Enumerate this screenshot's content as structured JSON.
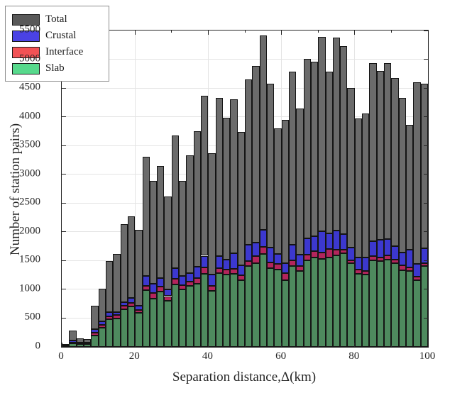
{
  "figure": {
    "x_axis_label": "Separation distance,Δ(km)",
    "y_axis_label": "Number of station pairs)"
  },
  "legend": {
    "position": "top-left",
    "items": [
      {
        "label": "Total",
        "color": "#595959"
      },
      {
        "label": "Crustal",
        "color": "#4a42e4"
      },
      {
        "label": "Interface",
        "color": "#f25255"
      },
      {
        "label": "Slab",
        "color": "#57d98c"
      }
    ]
  },
  "chart_data": {
    "type": "bar",
    "stacked": true,
    "title": "",
    "xlabel": "Separation distance,Δ(km)",
    "ylabel": "Number of station pairs)",
    "xlim": [
      0,
      100
    ],
    "ylim": [
      0,
      5500
    ],
    "grid": true,
    "legend_position": "top-left",
    "bin_width_km": 2,
    "y_ticks": [
      0,
      500,
      1000,
      1500,
      2000,
      2500,
      3000,
      3500,
      4000,
      4500,
      5000,
      5500
    ],
    "x_ticks": [
      0,
      20,
      40,
      60,
      80,
      100
    ],
    "x_minor_ticks": [
      10,
      30,
      50,
      70,
      90
    ],
    "bin_start_km": [
      0,
      2,
      4,
      6,
      8,
      10,
      12,
      14,
      16,
      18,
      20,
      22,
      24,
      26,
      28,
      30,
      32,
      34,
      36,
      38,
      40,
      42,
      44,
      46,
      48,
      50,
      52,
      54,
      56,
      58,
      60,
      62,
      64,
      66,
      68,
      70,
      72,
      74,
      76,
      78,
      80,
      82,
      84,
      86,
      88,
      90,
      92,
      94,
      96,
      98
    ],
    "series": [
      {
        "name": "Slab",
        "color": "#4e8a5e",
        "values": [
          15,
          60,
          50,
          45,
          200,
          330,
          480,
          495,
          650,
          700,
          590,
          985,
          840,
          965,
          800,
          1090,
          1000,
          1060,
          1100,
          1270,
          975,
          1285,
          1255,
          1270,
          1160,
          1400,
          1450,
          1615,
          1370,
          1345,
          1165,
          1405,
          1315,
          1500,
          1550,
          1530,
          1550,
          1590,
          1630,
          1450,
          1275,
          1255,
          1500,
          1490,
          1520,
          1450,
          1335,
          1315,
          1165,
          1400
        ]
      },
      {
        "name": "Interface",
        "color": "#b3255c",
        "values": [
          5,
          10,
          8,
          8,
          45,
          50,
          53,
          55,
          60,
          70,
          57,
          75,
          95,
          82,
          82,
          90,
          70,
          78,
          98,
          110,
          83,
          90,
          90,
          90,
          90,
          90,
          125,
          130,
          100,
          93,
          118,
          95,
          95,
          100,
          114,
          110,
          155,
          95,
          55,
          58,
          68,
          60,
          73,
          70,
          70,
          70,
          82,
          69,
          62,
          60
        ]
      },
      {
        "name": "Crustal",
        "color": "#3c38cf",
        "values": [
          8,
          45,
          20,
          20,
          60,
          60,
          70,
          60,
          70,
          75,
          65,
          175,
          165,
          145,
          115,
          190,
          165,
          145,
          200,
          205,
          197,
          205,
          175,
          265,
          168,
          290,
          235,
          290,
          260,
          177,
          176,
          275,
          192,
          290,
          255,
          373,
          265,
          341,
          275,
          218,
          206,
          234,
          264,
          301,
          288,
          226,
          226,
          300,
          211,
          253
        ]
      },
      {
        "name": "Total",
        "color": "#6b6b6b",
        "values": [
          35,
          290,
          150,
          135,
          720,
          1015,
          1490,
          1620,
          2135,
          2265,
          2040,
          3310,
          2890,
          3150,
          2610,
          3670,
          2885,
          3330,
          3745,
          4365,
          3370,
          4330,
          3980,
          4310,
          3740,
          4655,
          4880,
          5415,
          4580,
          3795,
          3945,
          4780,
          4140,
          5005,
          4955,
          5390,
          4790,
          5375,
          5230,
          4500,
          3965,
          4060,
          4935,
          4800,
          4935,
          4680,
          4335,
          3855,
          4600,
          4570
        ]
      }
    ]
  }
}
